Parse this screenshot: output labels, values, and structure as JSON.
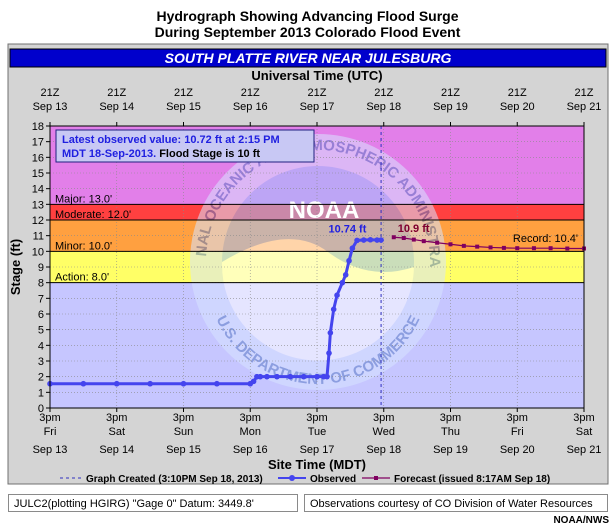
{
  "figure": {
    "title_line1": "Hydrograph Showing Advancing Flood Surge",
    "title_line2": "During September 2013 Colorado Flood Event",
    "banner": "SOUTH PLATTE RIVER NEAR JULESBURG",
    "credit": "NOAA/NWS",
    "footer_left": "JULC2(plotting HGIRG) \"Gage 0\" Datum: 3449.8'",
    "footer_right": "Observations courtesy of CO Division of Water Resources",
    "watermark": "NATIONAL OCEANIC AND ATMOSPHERIC ADMINISTRATION  ·  U.S. DEPARTMENT OF COMMERCE  ·  NOAA"
  },
  "chart_data": {
    "type": "line",
    "top_axis_label": "Universal Time (UTC)",
    "top_ticks": [
      {
        "x": 0,
        "line1": "21Z",
        "line2": "Sep 13"
      },
      {
        "x": 1,
        "line1": "21Z",
        "line2": "Sep 14"
      },
      {
        "x": 2,
        "line1": "21Z",
        "line2": "Sep 15"
      },
      {
        "x": 3,
        "line1": "21Z",
        "line2": "Sep 16"
      },
      {
        "x": 4,
        "line1": "21Z",
        "line2": "Sep 17"
      },
      {
        "x": 5,
        "line1": "21Z",
        "line2": "Sep 18"
      },
      {
        "x": 6,
        "line1": "21Z",
        "line2": "Sep 19"
      },
      {
        "x": 7,
        "line1": "21Z",
        "line2": "Sep 20"
      },
      {
        "x": 8,
        "line1": "21Z",
        "line2": "Sep 21"
      }
    ],
    "xlabel": "Site Time (MDT)",
    "bottom_ticks": [
      {
        "x": 0,
        "line1": "3pm",
        "line2": "Fri",
        "line3": "Sep 13"
      },
      {
        "x": 1,
        "line1": "3pm",
        "line2": "Sat",
        "line3": "Sep 14"
      },
      {
        "x": 2,
        "line1": "3pm",
        "line2": "Sun",
        "line3": "Sep 15"
      },
      {
        "x": 3,
        "line1": "3pm",
        "line2": "Mon",
        "line3": "Sep 16"
      },
      {
        "x": 4,
        "line1": "3pm",
        "line2": "Tue",
        "line3": "Sep 17"
      },
      {
        "x": 5,
        "line1": "3pm",
        "line2": "Wed",
        "line3": "Sep 18"
      },
      {
        "x": 6,
        "line1": "3pm",
        "line2": "Thu",
        "line3": "Sep 19"
      },
      {
        "x": 7,
        "line1": "3pm",
        "line2": "Fri",
        "line3": "Sep 20"
      },
      {
        "x": 8,
        "line1": "3pm",
        "line2": "Sat",
        "line3": "Sep 21"
      }
    ],
    "x_unit_note": "x = days after 3pm MDT Fri Sep 13, 2013",
    "ylabel": "Stage (ft)",
    "ylim": [
      0,
      18
    ],
    "xlim": [
      0,
      8
    ],
    "yticks": [
      0,
      1,
      2,
      3,
      4,
      5,
      6,
      7,
      8,
      9,
      10,
      11,
      12,
      13,
      14,
      15,
      16,
      17,
      18
    ],
    "grid": true,
    "flood_categories": [
      {
        "name": "Action",
        "label": "Action: 8.0'",
        "from": 8,
        "to": 10,
        "color": "#ffff66"
      },
      {
        "name": "Minor",
        "label": "Minor: 10.0'",
        "from": 10,
        "to": 12,
        "color": "#ffa040"
      },
      {
        "name": "Moderate",
        "label": "Moderate: 12.0'",
        "from": 12,
        "to": 13,
        "color": "#ff4040"
      },
      {
        "name": "Major",
        "label": "Major: 13.0'",
        "from": 13,
        "to": 18,
        "color": "#e27fe9"
      }
    ],
    "below_action_color": "#c6c6ff",
    "record": {
      "label": "Record: 10.4'",
      "value": 10.4
    },
    "info_box": {
      "line1": "Latest observed value: 10.72 ft at 2:15 PM",
      "line2_blue": "MDT 18-Sep-2013.",
      "line2_black": " Flood Stage is 10 ft"
    },
    "annotations": {
      "observed_peak": "10.74 ft",
      "forecast_peak": "10.9 ft"
    },
    "graph_created_x": 4.96,
    "series": [
      {
        "name": "Observed",
        "color": "#4444ee",
        "x": [
          0.0,
          0.5,
          1.0,
          1.5,
          2.0,
          2.5,
          3.0,
          3.05,
          3.1,
          3.15,
          3.25,
          3.4,
          3.6,
          3.8,
          4.0,
          4.1,
          4.15,
          4.18,
          4.2,
          4.25,
          4.3,
          4.38,
          4.43,
          4.48,
          4.53,
          4.6,
          4.7,
          4.8,
          4.9,
          4.96
        ],
        "values": [
          1.55,
          1.55,
          1.55,
          1.55,
          1.55,
          1.55,
          1.55,
          1.7,
          2.0,
          2.0,
          2.0,
          2.0,
          2.0,
          2.0,
          2.0,
          2.0,
          2.0,
          3.5,
          4.8,
          6.3,
          7.2,
          8.0,
          8.5,
          9.4,
          10.2,
          10.7,
          10.72,
          10.74,
          10.72,
          10.72
        ]
      },
      {
        "name": "Forecast",
        "legend_label": "Forecast (issued 8:17AM Sep 18)",
        "color": "#800060",
        "x": [
          5.15,
          5.3,
          5.45,
          5.6,
          5.8,
          6.0,
          6.2,
          6.4,
          6.6,
          6.8,
          7.0,
          7.25,
          7.5,
          7.75,
          8.0
        ],
        "values": [
          10.9,
          10.85,
          10.75,
          10.65,
          10.55,
          10.45,
          10.35,
          10.3,
          10.25,
          10.22,
          10.2,
          10.2,
          10.2,
          10.18,
          10.18
        ]
      }
    ],
    "legend": {
      "graph_created": "Graph Created (3:10PM Sep 18, 2013)",
      "observed": "Observed",
      "forecast": "Forecast (issued 8:17AM Sep 18)"
    }
  }
}
